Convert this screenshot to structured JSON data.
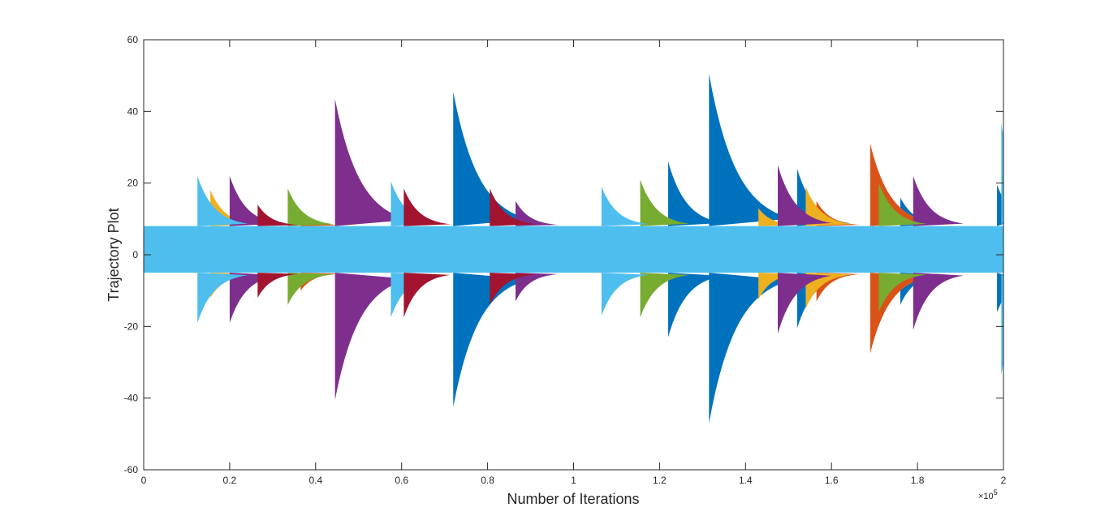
{
  "chart_data": {
    "type": "line",
    "title": "",
    "xlabel": "Number of Iterations",
    "ylabel": "Trajectory Plot",
    "xlim": [
      0,
      200000
    ],
    "ylim": [
      -60,
      60
    ],
    "x_ticks": [
      0,
      20000,
      40000,
      60000,
      80000,
      100000,
      120000,
      140000,
      160000,
      180000,
      200000
    ],
    "x_tick_labels": [
      "0",
      "0.2",
      "0.4",
      "0.6",
      "0.8",
      "1",
      "1.2",
      "1.4",
      "1.6",
      "1.8",
      "2"
    ],
    "x_exponent_label": "×10",
    "x_exponent_power": "5",
    "y_ticks": [
      -60,
      -40,
      -20,
      0,
      20,
      40,
      60
    ],
    "y_tick_labels": [
      "-60",
      "-40",
      "-20",
      "0",
      "20",
      "40",
      "60"
    ],
    "grid": false,
    "legend": "none",
    "baseline_band": [
      -5,
      8
    ],
    "series": [
      {
        "color": "#0072BD",
        "spikes": [
          {
            "x": 72000,
            "up": 45.5,
            "down": -42.5
          },
          {
            "x": 131500,
            "up": 50.5,
            "down": -47
          },
          {
            "x": 122000,
            "up": 26,
            "down": -23
          },
          {
            "x": 152000,
            "up": 24,
            "down": -20.5
          },
          {
            "x": 198500,
            "up": 19.5,
            "down": -16
          },
          {
            "x": 176000,
            "up": 16,
            "down": -14
          }
        ]
      },
      {
        "color": "#D95319",
        "spikes": [
          {
            "x": 169000,
            "up": 31,
            "down": -27.5
          },
          {
            "x": 156500,
            "up": 15,
            "down": -13
          },
          {
            "x": 36500,
            "up": 12,
            "down": -10
          }
        ]
      },
      {
        "color": "#EDB120",
        "spikes": [
          {
            "x": 154000,
            "up": 19,
            "down": -15
          },
          {
            "x": 143000,
            "up": 13,
            "down": -12.5
          },
          {
            "x": 15500,
            "up": 18,
            "down": -12
          }
        ]
      },
      {
        "color": "#7E2F8E",
        "spikes": [
          {
            "x": 44500,
            "up": 43.5,
            "down": -40.5
          },
          {
            "x": 20000,
            "up": 22,
            "down": -19
          },
          {
            "x": 147500,
            "up": 25,
            "down": -22
          },
          {
            "x": 179000,
            "up": 22,
            "down": -21
          },
          {
            "x": 86500,
            "up": 15,
            "down": -13
          }
        ]
      },
      {
        "color": "#77AC30",
        "spikes": [
          {
            "x": 115500,
            "up": 21,
            "down": -17.5
          },
          {
            "x": 171000,
            "up": 20,
            "down": -16
          },
          {
            "x": 33500,
            "up": 18.5,
            "down": -14
          }
        ]
      },
      {
        "color": "#4DBEEE",
        "spikes": [
          {
            "x": 12500,
            "up": 22,
            "down": -19
          },
          {
            "x": 57500,
            "up": 20.5,
            "down": -17.5
          },
          {
            "x": 106500,
            "up": 19,
            "down": -17
          },
          {
            "x": 199500,
            "up": 36.5,
            "down": -33.5
          }
        ]
      },
      {
        "color": "#A2142F",
        "spikes": [
          {
            "x": 60500,
            "up": 18.5,
            "down": -17.5
          },
          {
            "x": 80500,
            "up": 18.5,
            "down": -14
          },
          {
            "x": 26500,
            "up": 14,
            "down": -12
          }
        ]
      }
    ]
  }
}
